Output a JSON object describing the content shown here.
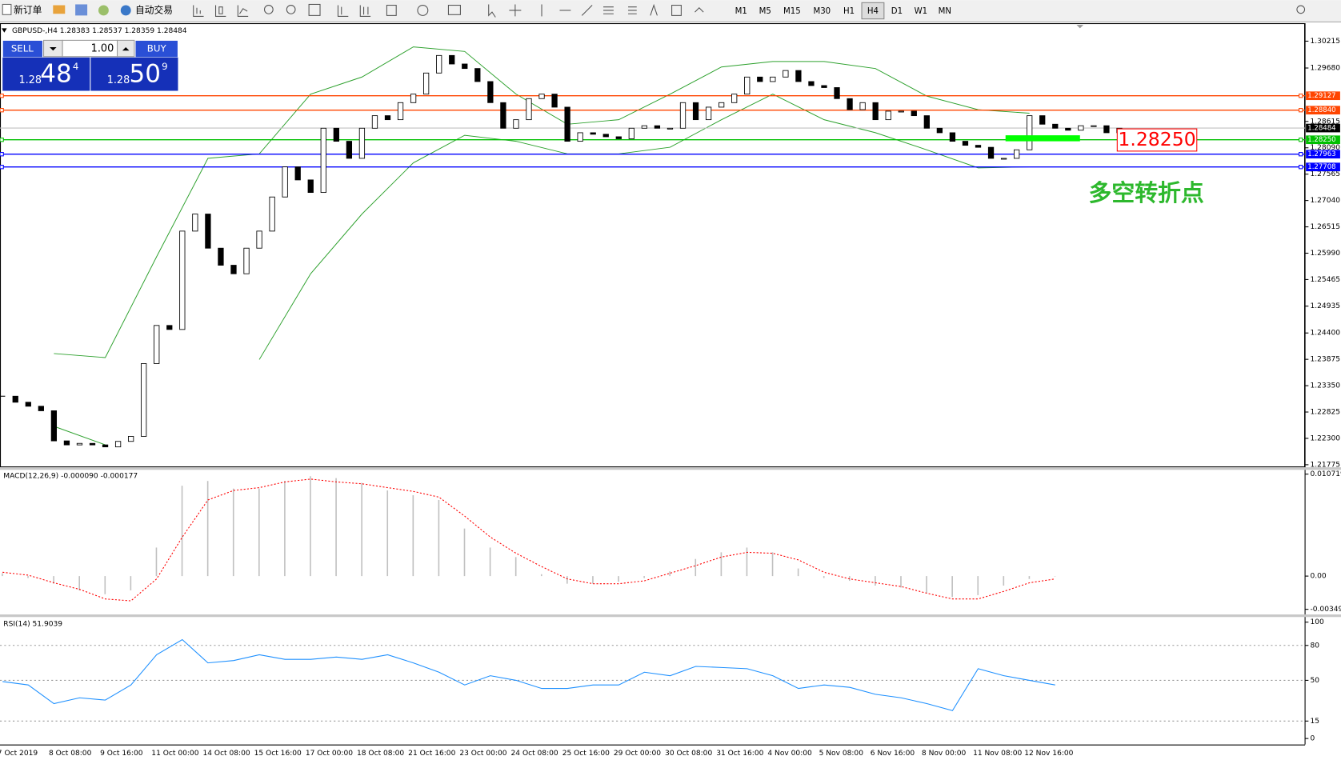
{
  "toolbar": {
    "new_order": "新订单",
    "auto_trading": "自动交易",
    "timeframes": [
      "M1",
      "M5",
      "M15",
      "M30",
      "H1",
      "H4",
      "D1",
      "W1",
      "MN"
    ],
    "active_timeframe": "H4"
  },
  "trade_panel": {
    "sell": "SELL",
    "buy": "BUY",
    "volume": "1.00",
    "sell_price": {
      "prefix": "1.28",
      "big": "48",
      "small": "4"
    },
    "buy_price": {
      "prefix": "1.28",
      "big": "50",
      "small": "9"
    }
  },
  "annotations": {
    "price_box": "1.28250",
    "note": "多空转折点"
  },
  "x_labels": [
    "7 Oct 2019",
    "8 Oct 08:00",
    "9 Oct 16:00",
    "11 Oct 00:00",
    "14 Oct 08:00",
    "15 Oct 16:00",
    "17 Oct 00:00",
    "18 Oct 08:00",
    "21 Oct 16:00",
    "23 Oct 00:00",
    "24 Oct 08:00",
    "25 Oct 16:00",
    "29 Oct 00:00",
    "30 Oct 08:00",
    "31 Oct 16:00",
    "4 Nov 00:00",
    "5 Nov 08:00",
    "6 Nov 16:00",
    "8 Nov 00:00",
    "11 Nov 08:00",
    "12 Nov 16:00"
  ],
  "chart_data": [
    {
      "type": "candlestick",
      "title": "GBPUSD-,H4  1.28383 1.28537 1.28359 1.28484",
      "ylim": [
        1.21741,
        1.30573
      ],
      "yticks": [
        1.30215,
        {
          "value": 1.2968,
          "label": "1.29680"
        },
        1.28615,
        {
          "value": 1.2809,
          "label": "1.28090"
        },
        1.27565,
        {
          "value": 1.2704,
          "label": "1.27040"
        },
        1.26515,
        {
          "value": 1.2599,
          "label": "1.25990"
        },
        1.25465,
        1.24935,
        {
          "value": 1.244,
          "label": "1.24400"
        },
        1.23875,
        {
          "value": 1.2335,
          "label": "1.23350"
        },
        1.22825,
        {
          "value": 1.223,
          "label": "1.22300"
        },
        1.21775
      ],
      "last_price": 1.28484,
      "levels": [
        {
          "value": 1.29127,
          "color": "#ff4500"
        },
        {
          "value": 1.2884,
          "label": "1.28840",
          "color": "#ff4500"
        },
        {
          "value": 1.2825,
          "label": "1.28250",
          "color": "#00c000"
        },
        {
          "value": 1.27963,
          "color": "#0000ff"
        },
        {
          "value": 1.27708,
          "color": "#0000ff"
        }
      ],
      "closes": [
        1.2314,
        1.2302,
        1.2294,
        1.2285,
        1.2225,
        1.2217,
        1.222,
        1.2217,
        1.2213,
        1.2224,
        1.2234,
        1.2379,
        1.2455,
        1.2447,
        1.2643,
        1.2677,
        1.2609,
        1.2575,
        1.2558,
        1.2609,
        1.2643,
        1.2711,
        1.2771,
        1.2745,
        1.272,
        1.2848,
        1.2822,
        1.2788,
        1.2848,
        1.2873,
        1.2865,
        1.2899,
        1.2916,
        1.2958,
        1.2993,
        1.2976,
        1.2967,
        1.2941,
        1.2899,
        1.2848,
        1.2865,
        1.2907,
        1.2916,
        1.289,
        1.2822,
        1.2839,
        1.2836,
        1.2831,
        1.2827,
        1.2848,
        1.2853,
        1.2848,
        1.2848,
        1.2899,
        1.2865,
        1.289,
        1.2899,
        1.2916,
        1.295,
        1.2941,
        1.295,
        1.2963,
        1.2941,
        1.2933,
        1.2929,
        1.2907,
        1.2885,
        1.2899,
        1.2865,
        1.2882,
        1.2882,
        1.2873,
        1.2848,
        1.2839,
        1.2822,
        1.2814,
        1.281,
        1.2788,
        1.2788,
        1.2805,
        1.2873,
        1.2856,
        1.2848,
        1.2844,
        1.2853,
        1.2853,
        1.2839,
        1.2848
      ],
      "bands": [
        {
          "color": "#2ca02c",
          "values": [
            null,
            1.2399,
            1.2391,
            1.2592,
            1.2788,
            1.2797,
            1.2916,
            1.295,
            1.301,
            1.3001,
            1.2916,
            1.2856,
            1.2865,
            1.2916,
            1.297,
            1.2981,
            1.2981,
            1.2967,
            1.2912,
            1.2885,
            1.2878
          ]
        },
        {
          "color": "#2ca02c",
          "values": [
            null,
            1.2254,
            1.2217,
            null,
            null,
            1.2387,
            1.2558,
            1.2677,
            1.2779,
            1.2834,
            1.2822,
            1.2797,
            1.2797,
            1.281,
            1.2865,
            1.2916,
            1.2865,
            1.2839,
            1.2805,
            1.2769,
            1.2771
          ]
        }
      ]
    },
    {
      "type": "macd",
      "title": "MACD(12,26,9) -0.000090 -0.000177",
      "ylim": [
        -0.003492,
        0.010719
      ],
      "yticks": [
        0.010719,
        {
          "value": 0,
          "label": "0.00"
        },
        -0.003492
      ],
      "histogram": {
        "color": "#c0c0c0",
        "values": [
          0.0003,
          -0.0002,
          -0.0008,
          -0.0015,
          -0.0019,
          -0.0015,
          0.003,
          0.0095,
          0.01,
          0.0092,
          0.0092,
          0.01,
          0.0105,
          0.0103,
          0.0098,
          0.009,
          0.0085,
          0.008,
          0.005,
          0.003,
          0.002,
          0.0002,
          -0.0008,
          -0.0008,
          -0.0006,
          -0.0002,
          0.0005,
          0.0018,
          0.0025,
          0.003,
          0.0025,
          0.0008,
          -0.0002,
          -0.0005,
          -0.001,
          -0.0012,
          -0.0018,
          -0.0022,
          -0.002,
          -0.001,
          -0.0003,
          0
        ]
      },
      "signal": {
        "color": "#ff0000",
        "values": [
          0.0004,
          0.0001,
          -0.0007,
          -0.0014,
          -0.0024,
          -0.0026,
          -0.0003,
          0.0041,
          0.008,
          0.009,
          0.0093,
          0.0099,
          0.0102,
          0.0099,
          0.0097,
          0.0093,
          0.0089,
          0.0083,
          0.0063,
          0.0041,
          0.0024,
          0.001,
          -0.0003,
          -0.0008,
          -0.0008,
          -0.0005,
          0.0003,
          0.0011,
          0.002,
          0.0025,
          0.0024,
          0.0017,
          0.0004,
          -0.0003,
          -0.0007,
          -0.0011,
          -0.0018,
          -0.0024,
          -0.0024,
          -0.0016,
          -0.0007,
          -0.0003
        ]
      }
    },
    {
      "type": "line",
      "title": "RSI(14) 51.9039",
      "ylim": [
        0,
        100
      ],
      "yticks": [
        100,
        80,
        50,
        15,
        0
      ],
      "color": "#1e90ff",
      "values": [
        49,
        46,
        30,
        35,
        33,
        46,
        72,
        85,
        65,
        67,
        72,
        68,
        68,
        70,
        68,
        72,
        65,
        57,
        46,
        54,
        50,
        43,
        43,
        46,
        46,
        57,
        54,
        62,
        61,
        60,
        54,
        43,
        46,
        44,
        38,
        35,
        30,
        24,
        60,
        54,
        50,
        46
      ]
    }
  ]
}
